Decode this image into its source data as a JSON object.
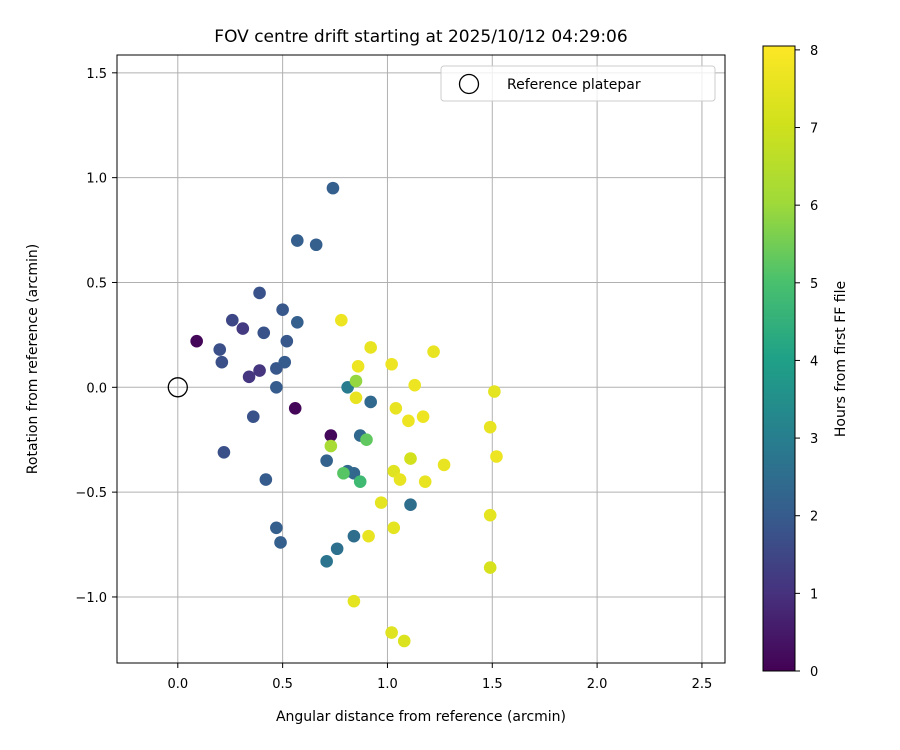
{
  "chart_data": {
    "type": "scatter",
    "title": "FOV centre drift starting at 2025/10/12 04:29:06",
    "xlabel": "Angular distance from reference (arcmin)",
    "ylabel": "Rotation from reference (arcmin)",
    "xlim": [
      -0.29,
      2.61
    ],
    "ylim": [
      -1.315,
      1.585
    ],
    "xticks": [
      0.0,
      0.5,
      1.0,
      1.5,
      2.0,
      2.5
    ],
    "xtick_labels": [
      "0.0",
      "0.5",
      "1.0",
      "1.5",
      "2.0",
      "2.5"
    ],
    "yticks": [
      -1.0,
      -0.5,
      0.0,
      0.5,
      1.0,
      1.5
    ],
    "ytick_labels": [
      "−1.0",
      "−0.5",
      "0.0",
      "0.5",
      "1.0",
      "1.5"
    ],
    "grid": true,
    "legend": {
      "position": "top-right",
      "label": "Reference platepar"
    },
    "reference_point": {
      "x": 0.0,
      "y": 0.0
    },
    "colorbar": {
      "label": "Hours from first FF file",
      "range": [
        0,
        8.05
      ],
      "ticks": [
        0,
        1,
        2,
        3,
        4,
        5,
        6,
        7,
        8
      ],
      "tick_labels": [
        "0",
        "1",
        "2",
        "3",
        "4",
        "5",
        "6",
        "7",
        "8"
      ],
      "colormap": "viridis"
    },
    "points": [
      {
        "x": 0.09,
        "y": 0.22,
        "t": 0.1
      },
      {
        "x": 0.56,
        "y": -0.1,
        "t": 0.1
      },
      {
        "x": 0.73,
        "y": -0.23,
        "t": 0.15
      },
      {
        "x": 0.34,
        "y": 0.05,
        "t": 1.1
      },
      {
        "x": 0.39,
        "y": 0.08,
        "t": 1.1
      },
      {
        "x": 0.31,
        "y": 0.28,
        "t": 1.2
      },
      {
        "x": 0.26,
        "y": 0.32,
        "t": 1.5
      },
      {
        "x": 0.2,
        "y": 0.18,
        "t": 1.7
      },
      {
        "x": 0.21,
        "y": 0.12,
        "t": 1.7
      },
      {
        "x": 0.22,
        "y": -0.31,
        "t": 1.7
      },
      {
        "x": 0.36,
        "y": -0.14,
        "t": 1.8
      },
      {
        "x": 0.41,
        "y": 0.26,
        "t": 1.8
      },
      {
        "x": 0.39,
        "y": 0.45,
        "t": 1.8
      },
      {
        "x": 0.42,
        "y": -0.44,
        "t": 2.0
      },
      {
        "x": 0.47,
        "y": 0.09,
        "t": 1.9
      },
      {
        "x": 0.47,
        "y": 0.0,
        "t": 2.0
      },
      {
        "x": 0.5,
        "y": 0.37,
        "t": 1.9
      },
      {
        "x": 0.51,
        "y": 0.12,
        "t": 2.0
      },
      {
        "x": 0.52,
        "y": 0.22,
        "t": 1.9
      },
      {
        "x": 0.57,
        "y": 0.31,
        "t": 2.1
      },
      {
        "x": 0.57,
        "y": 0.7,
        "t": 2.1
      },
      {
        "x": 0.66,
        "y": 0.68,
        "t": 2.1
      },
      {
        "x": 0.74,
        "y": 0.95,
        "t": 2.1
      },
      {
        "x": 0.47,
        "y": -0.67,
        "t": 2.1
      },
      {
        "x": 0.49,
        "y": -0.74,
        "t": 2.1
      },
      {
        "x": 0.71,
        "y": -0.35,
        "t": 2.2
      },
      {
        "x": 0.84,
        "y": -0.41,
        "t": 2.3
      },
      {
        "x": 0.81,
        "y": -0.4,
        "t": 2.4
      },
      {
        "x": 0.92,
        "y": -0.07,
        "t": 2.4
      },
      {
        "x": 0.87,
        "y": -0.23,
        "t": 2.4
      },
      {
        "x": 0.84,
        "y": -0.71,
        "t": 2.5
      },
      {
        "x": 1.11,
        "y": -0.56,
        "t": 2.5
      },
      {
        "x": 0.76,
        "y": -0.77,
        "t": 2.6
      },
      {
        "x": 0.71,
        "y": -0.83,
        "t": 2.7
      },
      {
        "x": 0.81,
        "y": 0.0,
        "t": 2.9
      },
      {
        "x": 0.87,
        "y": -0.45,
        "t": 4.8
      },
      {
        "x": 0.79,
        "y": -0.41,
        "t": 5.2
      },
      {
        "x": 0.9,
        "y": -0.25,
        "t": 5.3
      },
      {
        "x": 0.85,
        "y": 0.03,
        "t": 5.9
      },
      {
        "x": 0.73,
        "y": -0.28,
        "t": 6.2
      },
      {
        "x": 0.78,
        "y": 0.32,
        "t": 7.7
      },
      {
        "x": 0.86,
        "y": 0.1,
        "t": 7.7
      },
      {
        "x": 0.92,
        "y": 0.19,
        "t": 7.6
      },
      {
        "x": 0.85,
        "y": -0.05,
        "t": 7.6
      },
      {
        "x": 1.02,
        "y": 0.11,
        "t": 7.7
      },
      {
        "x": 1.04,
        "y": -0.1,
        "t": 7.6
      },
      {
        "x": 1.13,
        "y": 0.01,
        "t": 7.7
      },
      {
        "x": 1.1,
        "y": -0.16,
        "t": 7.7
      },
      {
        "x": 1.17,
        "y": -0.14,
        "t": 7.7
      },
      {
        "x": 1.22,
        "y": 0.17,
        "t": 7.6
      },
      {
        "x": 1.51,
        "y": -0.02,
        "t": 7.5
      },
      {
        "x": 1.49,
        "y": -0.19,
        "t": 7.6
      },
      {
        "x": 1.52,
        "y": -0.33,
        "t": 7.7
      },
      {
        "x": 1.11,
        "y": -0.34,
        "t": 7.1
      },
      {
        "x": 1.27,
        "y": -0.37,
        "t": 7.6
      },
      {
        "x": 1.03,
        "y": -0.4,
        "t": 7.4
      },
      {
        "x": 1.06,
        "y": -0.44,
        "t": 7.6
      },
      {
        "x": 1.18,
        "y": -0.45,
        "t": 7.6
      },
      {
        "x": 0.97,
        "y": -0.55,
        "t": 7.5
      },
      {
        "x": 1.03,
        "y": -0.67,
        "t": 7.5
      },
      {
        "x": 0.91,
        "y": -0.71,
        "t": 7.6
      },
      {
        "x": 1.49,
        "y": -0.61,
        "t": 7.5
      },
      {
        "x": 1.49,
        "y": -0.86,
        "t": 7.2
      },
      {
        "x": 0.84,
        "y": -1.02,
        "t": 7.5
      },
      {
        "x": 1.02,
        "y": -1.17,
        "t": 7.4
      },
      {
        "x": 1.08,
        "y": -1.21,
        "t": 7.3
      }
    ]
  }
}
